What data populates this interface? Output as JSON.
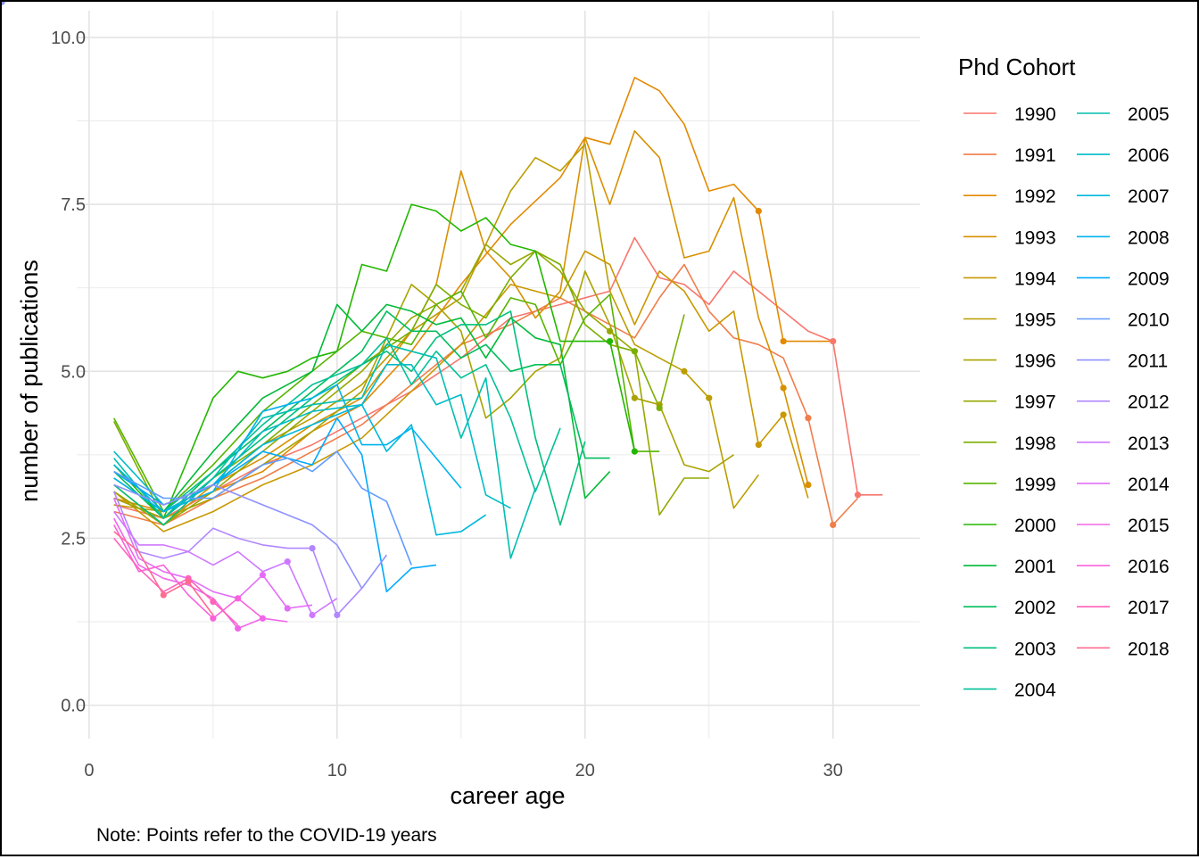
{
  "chart_data": {
    "type": "line",
    "xlabel": "career age",
    "ylabel": "number of publications",
    "xlim": [
      -0.5,
      33.5
    ],
    "ylim": [
      -0.5,
      10.4
    ],
    "xticks": [
      0,
      10,
      20,
      30
    ],
    "yticks": [
      0,
      2.5,
      5,
      7.5,
      10
    ],
    "xtick_labels": [
      "0",
      "10",
      "20",
      "30"
    ],
    "ytick_labels": [
      "0.0",
      "2.5",
      "5.0",
      "7.5",
      "10.0"
    ],
    "grid": true,
    "legend_title": "Phd Cohort",
    "legend_position": "right",
    "note": "Note: Points refer to the COVID-19 years",
    "series": [
      {
        "name": "1990",
        "color": "#F8766D",
        "x": [
          1,
          3,
          5,
          7,
          9,
          11,
          13,
          15,
          17,
          19,
          21,
          22,
          23,
          24,
          25,
          26,
          27,
          28,
          29,
          30,
          31,
          32
        ],
        "y": [
          3.0,
          2.8,
          3.2,
          3.6,
          3.9,
          4.3,
          4.7,
          5.2,
          5.8,
          6.0,
          6.2,
          7.0,
          6.4,
          6.3,
          6.0,
          6.5,
          6.2,
          5.9,
          5.6,
          5.45,
          3.15,
          3.15
        ],
        "covid_idx": [
          19,
          20
        ]
      },
      {
        "name": "1991",
        "color": "#F07E4A",
        "x": [
          1,
          3,
          5,
          7,
          9,
          11,
          13,
          15,
          17,
          19,
          21,
          22,
          23,
          24,
          25,
          26,
          27,
          28,
          29,
          30,
          31
        ],
        "y": [
          2.9,
          2.7,
          3.1,
          3.4,
          3.8,
          4.2,
          4.8,
          5.4,
          5.7,
          6.1,
          5.7,
          5.5,
          6.1,
          6.6,
          5.9,
          5.5,
          5.4,
          5.2,
          4.3,
          2.7,
          3.1
        ],
        "covid_idx": [
          18,
          19
        ]
      },
      {
        "name": "1992",
        "color": "#E38900",
        "x": [
          1,
          3,
          5,
          7,
          9,
          11,
          13,
          15,
          17,
          19,
          20,
          21,
          22,
          23,
          24,
          25,
          26,
          27,
          28,
          29,
          30
        ],
        "y": [
          3.1,
          2.9,
          3.2,
          3.5,
          4.1,
          4.5,
          5.3,
          6.3,
          7.2,
          7.9,
          8.5,
          8.4,
          9.4,
          9.2,
          8.7,
          7.7,
          7.8,
          7.4,
          5.45,
          5.45,
          5.45
        ],
        "covid_idx": [
          17,
          18
        ]
      },
      {
        "name": "1993",
        "color": "#D89000",
        "x": [
          1,
          3,
          5,
          7,
          9,
          11,
          13,
          14,
          15,
          16,
          17,
          18,
          19,
          20,
          21,
          22,
          23,
          24,
          25,
          26,
          27,
          28,
          29
        ],
        "y": [
          3.3,
          2.7,
          3.3,
          3.7,
          4.2,
          4.6,
          5.6,
          6.3,
          8.0,
          6.8,
          6.4,
          5.8,
          6.2,
          8.5,
          7.5,
          8.6,
          8.2,
          6.7,
          6.8,
          7.6,
          5.8,
          4.75,
          3.3
        ],
        "covid_idx": [
          21,
          22
        ]
      },
      {
        "name": "1994",
        "color": "#C99800",
        "x": [
          1,
          3,
          5,
          7,
          9,
          11,
          13,
          15,
          17,
          19,
          20,
          21,
          22,
          23,
          24,
          25,
          26,
          27,
          28,
          29
        ],
        "y": [
          3.2,
          2.6,
          2.9,
          3.3,
          3.6,
          4.0,
          4.7,
          5.4,
          6.3,
          6.1,
          6.8,
          6.6,
          5.7,
          6.5,
          6.2,
          5.6,
          5.9,
          3.9,
          4.35,
          3.1
        ],
        "covid_idx": [
          17,
          18
        ]
      },
      {
        "name": "1995",
        "color": "#BB9D00",
        "x": [
          1,
          3,
          5,
          7,
          9,
          11,
          13,
          15,
          17,
          18,
          19,
          20,
          21,
          22,
          23,
          24,
          25,
          26,
          27
        ],
        "y": [
          3.0,
          2.9,
          3.3,
          3.9,
          4.3,
          4.8,
          5.6,
          6.1,
          7.7,
          8.2,
          8.0,
          8.4,
          6.2,
          5.4,
          5.2,
          5.0,
          4.6,
          2.95,
          3.45
        ],
        "covid_idx": [
          15,
          16
        ]
      },
      {
        "name": "1996",
        "color": "#A8A300",
        "x": [
          1,
          3,
          5,
          7,
          9,
          11,
          13,
          14,
          15,
          16,
          17,
          18,
          19,
          20,
          21,
          22,
          23,
          24,
          25,
          26
        ],
        "y": [
          3.1,
          2.8,
          3.1,
          3.6,
          4.1,
          4.7,
          6.3,
          6.0,
          5.6,
          4.3,
          4.6,
          5.0,
          5.2,
          6.5,
          5.7,
          4.6,
          4.5,
          3.6,
          3.5,
          3.75
        ],
        "covid_idx": [
          15,
          16
        ]
      },
      {
        "name": "1997",
        "color": "#96A800",
        "x": [
          1,
          3,
          5,
          7,
          9,
          11,
          13,
          15,
          16,
          17,
          18,
          19,
          20,
          21,
          22,
          23,
          24,
          25
        ],
        "y": [
          3.2,
          2.7,
          3.2,
          3.8,
          4.4,
          5.0,
          5.8,
          6.2,
          6.9,
          6.6,
          6.8,
          6.5,
          5.9,
          5.6,
          5.3,
          2.85,
          3.4,
          3.4
        ],
        "covid_idx": [
          13,
          14
        ]
      },
      {
        "name": "1998",
        "color": "#7CAE00",
        "x": [
          1,
          3,
          5,
          7,
          9,
          11,
          13,
          14,
          15,
          16,
          17,
          18,
          19,
          20,
          21,
          22,
          23,
          24
        ],
        "y": [
          4.25,
          2.8,
          3.4,
          3.9,
          4.5,
          5.1,
          5.6,
          6.3,
          6.0,
          5.8,
          6.4,
          6.8,
          6.6,
          5.7,
          5.4,
          5.3,
          4.45,
          5.85
        ],
        "covid_idx": [
          15,
          16
        ]
      },
      {
        "name": "1999",
        "color": "#57B400",
        "x": [
          1,
          3,
          5,
          7,
          9,
          11,
          13,
          14,
          15,
          16,
          17,
          18,
          19,
          20,
          21,
          22,
          23
        ],
        "y": [
          4.3,
          2.9,
          3.6,
          4.4,
          5.0,
          5.6,
          5.4,
          6.0,
          6.2,
          5.5,
          6.1,
          6.0,
          5.1,
          5.8,
          6.15,
          3.8,
          3.8
        ],
        "covid_idx": [
          20,
          21
        ]
      },
      {
        "name": "2000",
        "color": "#22B700",
        "x": [
          1,
          3,
          5,
          6,
          7,
          8,
          9,
          10,
          11,
          12,
          13,
          14,
          15,
          16,
          17,
          18,
          19,
          20,
          21,
          22
        ],
        "y": [
          3.6,
          2.8,
          4.6,
          5.0,
          4.9,
          5.0,
          5.2,
          5.3,
          6.6,
          6.5,
          7.5,
          7.4,
          7.1,
          7.3,
          6.9,
          6.8,
          5.45,
          5.45,
          5.45,
          3.8
        ],
        "covid_idx": [
          18,
          19
        ]
      },
      {
        "name": "2001",
        "color": "#00BA38",
        "x": [
          1,
          3,
          5,
          7,
          9,
          10,
          11,
          12,
          13,
          14,
          15,
          16,
          17,
          18,
          19,
          20,
          21
        ],
        "y": [
          3.4,
          2.9,
          3.8,
          4.6,
          5.0,
          6.0,
          5.6,
          6.0,
          5.9,
          5.7,
          5.8,
          5.2,
          5.8,
          5.5,
          5.4,
          3.1,
          3.5
        ],
        "covid_idx": [
          19,
          20
        ]
      },
      {
        "name": "2002",
        "color": "#00BD5C",
        "x": [
          1,
          3,
          5,
          7,
          9,
          10,
          11,
          12,
          13,
          14,
          15,
          16,
          17,
          18,
          19,
          20,
          21
        ],
        "y": [
          3.5,
          2.8,
          3.5,
          4.1,
          4.7,
          5.0,
          5.3,
          5.9,
          5.6,
          5.6,
          5.2,
          5.4,
          5.0,
          5.1,
          5.1,
          3.7,
          3.7
        ],
        "covid_idx": [
          17,
          18
        ]
      },
      {
        "name": "2003",
        "color": "#00C07B",
        "x": [
          1,
          3,
          5,
          7,
          9,
          11,
          12,
          13,
          14,
          15,
          16,
          17,
          18,
          19,
          20
        ],
        "y": [
          3.3,
          2.7,
          3.4,
          4.0,
          4.6,
          5.1,
          5.3,
          5.0,
          5.5,
          5.7,
          5.7,
          5.9,
          4.0,
          2.7,
          3.95
        ],
        "covid_idx": [
          17,
          18
        ]
      },
      {
        "name": "2004",
        "color": "#00C097",
        "x": [
          1,
          3,
          5,
          7,
          9,
          11,
          12,
          13,
          14,
          15,
          16,
          17,
          18,
          19
        ],
        "y": [
          3.6,
          2.9,
          3.5,
          4.2,
          4.8,
          5.1,
          5.5,
          4.8,
          5.3,
          4.9,
          5.1,
          4.3,
          3.2,
          4.15
        ],
        "covid_idx": [
          16,
          17
        ]
      },
      {
        "name": "2005",
        "color": "#00BFB0",
        "x": [
          1,
          3,
          5,
          7,
          9,
          11,
          12,
          13,
          14,
          15,
          16,
          17,
          18
        ],
        "y": [
          3.7,
          2.8,
          3.4,
          4.3,
          4.5,
          4.6,
          5.4,
          5.3,
          5.2,
          4.0,
          4.9,
          2.2,
          3.25
        ],
        "covid_idx": [
          15,
          16
        ]
      },
      {
        "name": "2006",
        "color": "#00BCC8",
        "x": [
          1,
          3,
          5,
          7,
          9,
          11,
          12,
          13,
          14,
          15,
          16,
          17
        ],
        "y": [
          3.8,
          3.0,
          3.3,
          4.1,
          4.4,
          4.5,
          5.1,
          5.1,
          4.5,
          4.65,
          3.15,
          2.95
        ],
        "covid_idx": [
          14,
          15
        ]
      },
      {
        "name": "2007",
        "color": "#00B8DC",
        "x": [
          1,
          3,
          5,
          7,
          9,
          11,
          12,
          13,
          14,
          15,
          16
        ],
        "y": [
          3.6,
          2.9,
          3.3,
          3.9,
          4.2,
          4.5,
          3.8,
          4.2,
          2.55,
          2.6,
          2.85
        ],
        "covid_idx": [
          13,
          14
        ]
      },
      {
        "name": "2008",
        "color": "#00B2EE",
        "x": [
          1,
          3,
          5,
          7,
          9,
          10,
          11,
          12,
          13,
          14,
          15
        ],
        "y": [
          3.4,
          2.9,
          3.2,
          4.4,
          4.6,
          4.8,
          3.9,
          3.9,
          4.15,
          3.7,
          3.25
        ],
        "covid_idx": [
          12,
          13
        ]
      },
      {
        "name": "2009",
        "color": "#00A9FF",
        "x": [
          1,
          3,
          5,
          7,
          9,
          10,
          11,
          12,
          13,
          14
        ],
        "y": [
          3.5,
          3.0,
          3.3,
          3.8,
          3.6,
          4.3,
          3.75,
          1.7,
          2.05,
          2.1
        ],
        "covid_idx": [
          11,
          12
        ]
      },
      {
        "name": "2010",
        "color": "#619CFF",
        "x": [
          1,
          3,
          5,
          7,
          8,
          9,
          10,
          11,
          12,
          13
        ],
        "y": [
          3.5,
          3.1,
          3.1,
          3.6,
          3.7,
          3.5,
          3.8,
          3.25,
          3.05,
          2.1
        ],
        "covid_idx": [
          10,
          11
        ]
      },
      {
        "name": "2011",
        "color": "#8F91FF",
        "x": [
          1,
          3,
          5,
          7,
          9,
          10,
          11,
          12
        ],
        "y": [
          3.3,
          3.0,
          3.3,
          3.0,
          2.7,
          2.4,
          1.75,
          2.25
        ],
        "covid_idx": [
          9,
          10
        ]
      },
      {
        "name": "2012",
        "color": "#B186FF",
        "x": [
          1,
          2,
          3,
          4,
          5,
          6,
          7,
          8,
          9,
          10,
          11
        ],
        "y": [
          3.2,
          2.3,
          2.2,
          2.3,
          2.65,
          2.5,
          2.4,
          2.35,
          2.35,
          1.35,
          1.75
        ],
        "covid_idx": [
          8,
          9
        ]
      },
      {
        "name": "2013",
        "color": "#CF78FF",
        "x": [
          1,
          2,
          3,
          4,
          5,
          6,
          7,
          8,
          9,
          10
        ],
        "y": [
          2.9,
          2.4,
          2.4,
          2.3,
          2.1,
          2.3,
          2.0,
          2.15,
          1.35,
          1.6
        ],
        "covid_idx": [
          7,
          8
        ]
      },
      {
        "name": "2014",
        "color": "#E36EF6",
        "x": [
          1,
          2,
          3,
          4,
          5,
          6,
          7,
          8,
          9
        ],
        "y": [
          3.1,
          2.2,
          2.0,
          1.9,
          1.7,
          1.6,
          1.95,
          1.45,
          1.5
        ],
        "covid_idx": [
          6,
          7
        ]
      },
      {
        "name": "2015",
        "color": "#F066E9",
        "x": [
          1,
          2,
          3,
          4,
          5,
          6,
          7,
          8
        ],
        "y": [
          2.8,
          2.1,
          1.9,
          1.8,
          1.6,
          1.15,
          1.3,
          1.25
        ],
        "covid_idx": [
          5,
          6
        ]
      },
      {
        "name": "2016",
        "color": "#FA62DB",
        "x": [
          1,
          2,
          3,
          4,
          5,
          6,
          7
        ],
        "y": [
          2.7,
          2.0,
          2.1,
          1.65,
          1.3,
          1.6,
          1.3
        ],
        "covid_idx": [
          4,
          5
        ]
      },
      {
        "name": "2017",
        "color": "#FF62BC",
        "x": [
          1,
          2,
          3,
          4,
          5,
          6
        ],
        "y": [
          2.5,
          2.05,
          1.7,
          1.9,
          1.55,
          1.2
        ],
        "covid_idx": [
          3,
          4
        ]
      },
      {
        "name": "2018",
        "color": "#FF6C91",
        "x": [
          1,
          2,
          3,
          4,
          5
        ],
        "y": [
          2.6,
          2.3,
          1.65,
          1.85,
          1.35
        ],
        "covid_idx": [
          2,
          3
        ]
      }
    ]
  }
}
